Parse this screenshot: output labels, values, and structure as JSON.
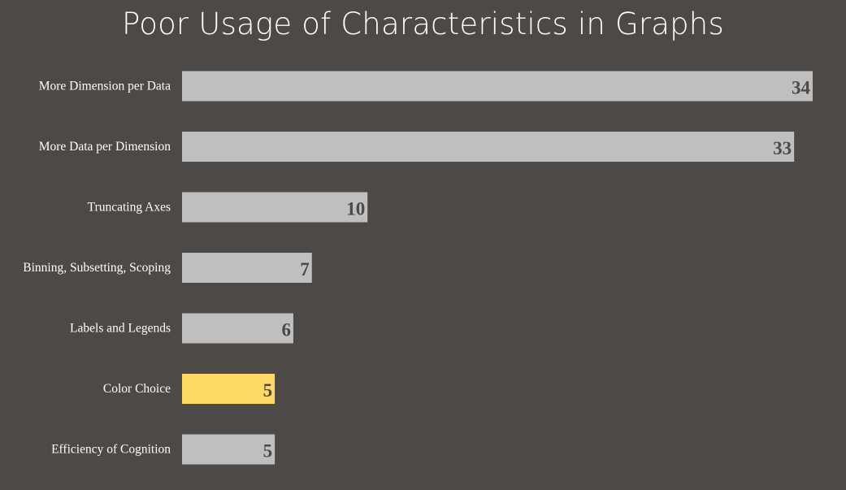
{
  "colors": {
    "background": "#4d4946",
    "bar": "#bfbfbf",
    "highlight": "#ffd966",
    "title_text": "#ffffff",
    "label_text": "#ffffff",
    "value_text": "#4d4946"
  },
  "chart_data": {
    "type": "bar",
    "orientation": "horizontal",
    "title": "Poor Usage of Characteristics in Graphs",
    "xlabel": "",
    "ylabel": "",
    "grid": false,
    "legend": "none",
    "xlim": [
      0,
      35
    ],
    "categories": [
      "More Dimension per Data",
      "More Data per Dimension",
      "Truncating Axes",
      "Binning, Subsetting, Scoping",
      "Labels and Legends",
      "Color Choice",
      "Efficiency of Cognition"
    ],
    "values": [
      34,
      33,
      10,
      7,
      6,
      5,
      5
    ],
    "highlighted_category": "Color Choice"
  }
}
